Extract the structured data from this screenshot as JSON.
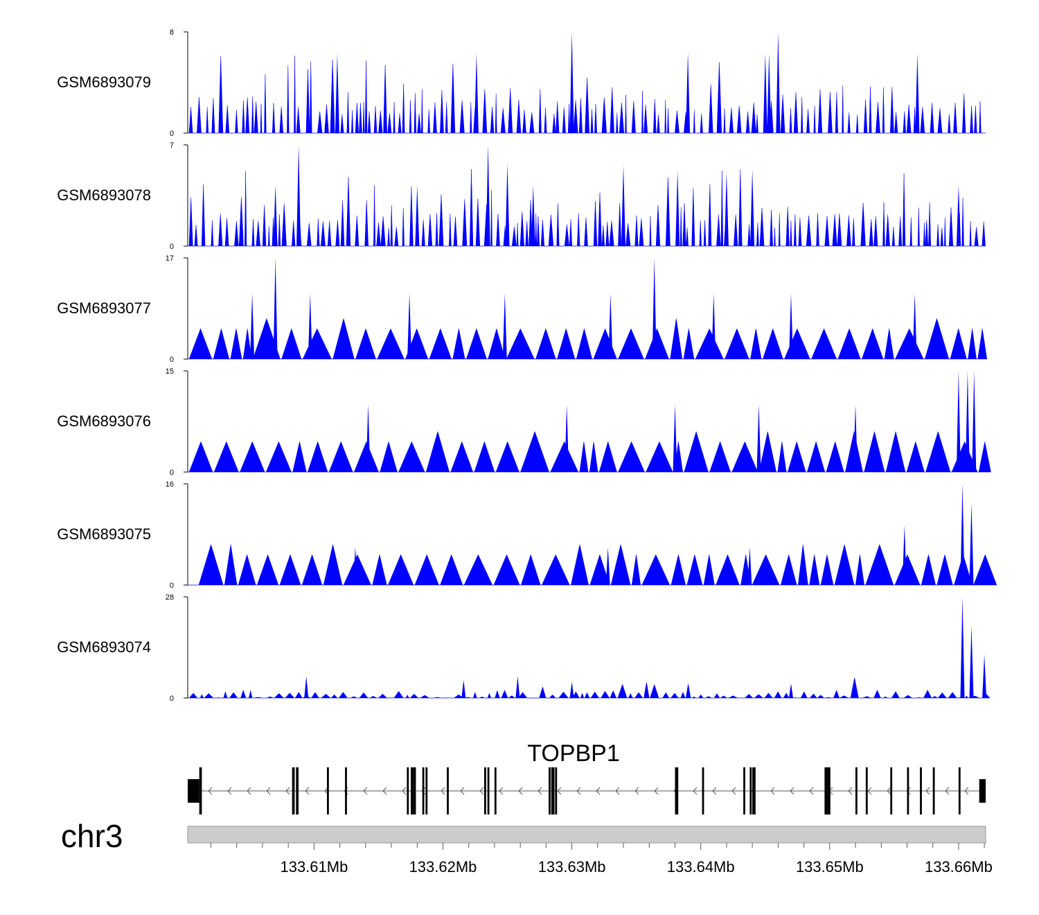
{
  "chart_data": {
    "type": "area",
    "xlim": [
      133600200,
      133662100
    ],
    "tracks": [
      {
        "name": "GSM6893079",
        "ymax": 8,
        "ymin": 0,
        "color": "#0000ff",
        "peaks": [
          [
            133611800,
            6.3
          ],
          [
            133622600,
            6.3
          ],
          [
            133630000,
            8
          ],
          [
            133639000,
            6.4
          ],
          [
            133645000,
            6.3
          ],
          [
            133645300,
            6.3
          ],
          [
            133646000,
            8
          ],
          [
            133656800,
            6.3
          ]
        ]
      },
      {
        "name": "GSM6893078",
        "ymax": 7,
        "ymin": 0,
        "color": "#0000ff",
        "peaks": [
          [
            133607000,
            4.2
          ],
          [
            133608800,
            7
          ],
          [
            133618000,
            4.2
          ],
          [
            133623500,
            7
          ],
          [
            133625000,
            5.7
          ],
          [
            133627000,
            4.2
          ],
          [
            133634000,
            5.6
          ],
          [
            133638200,
            5.2
          ],
          [
            133642000,
            5.1
          ],
          [
            133644000,
            5.3
          ],
          [
            133660000,
            4.2
          ]
        ]
      },
      {
        "name": "GSM6893077",
        "ymax": 17,
        "ymin": 0,
        "color": "#0000ff",
        "peaks": [
          [
            133605200,
            11
          ],
          [
            133607000,
            17
          ],
          [
            133609700,
            11
          ],
          [
            133617400,
            11
          ],
          [
            133624800,
            11
          ],
          [
            133633000,
            11
          ],
          [
            133636400,
            17
          ],
          [
            133641000,
            11
          ],
          [
            133647000,
            11
          ],
          [
            133656600,
            11
          ]
        ]
      },
      {
        "name": "GSM6893076",
        "ymax": 15,
        "ymin": 0,
        "color": "#0000ff",
        "peaks": [
          [
            133614200,
            10
          ],
          [
            133629600,
            10
          ],
          [
            133638000,
            10
          ],
          [
            133644500,
            10
          ],
          [
            133652000,
            10
          ],
          [
            133660000,
            15
          ],
          [
            133660700,
            15
          ],
          [
            133661200,
            15
          ]
        ]
      },
      {
        "name": "GSM6893075",
        "ymax": 16,
        "ymin": 0,
        "color": "#0000ff",
        "peaks": [
          [
            133613200,
            6
          ],
          [
            133632800,
            6
          ],
          [
            133643800,
            6
          ],
          [
            133655800,
            9.5
          ],
          [
            133660300,
            16
          ],
          [
            133661000,
            13
          ]
        ]
      },
      {
        "name": "GSM6893074",
        "ymax": 28,
        "ymin": 0,
        "color": "#0000ff",
        "peaks": [
          [
            133609400,
            6
          ],
          [
            133621600,
            5
          ],
          [
            133625800,
            6
          ],
          [
            133630000,
            4.5
          ],
          [
            133647000,
            4
          ],
          [
            133660300,
            28
          ],
          [
            133661000,
            20
          ],
          [
            133662000,
            12
          ]
        ]
      }
    ],
    "gene": {
      "name": "TOPBP1",
      "strand": "-",
      "start": 133600200,
      "end": 133662100,
      "exons": [
        [
          133600200,
          133601100,
          "utr"
        ],
        [
          133601100,
          133601300,
          "cds"
        ],
        [
          133608300,
          133608500,
          "cds"
        ],
        [
          133608600,
          133608800,
          "cds"
        ],
        [
          133611000,
          133611150,
          "cds"
        ],
        [
          133612400,
          133612550,
          "cds"
        ],
        [
          133617200,
          133617350,
          "cds"
        ],
        [
          133617500,
          133617700,
          "cds"
        ],
        [
          133617700,
          133617900,
          "cds"
        ],
        [
          133618400,
          133618550,
          "cds"
        ],
        [
          133618650,
          133618800,
          "cds"
        ],
        [
          133620300,
          133620450,
          "cds"
        ],
        [
          133623200,
          133623350,
          "cds"
        ],
        [
          133623450,
          133623600,
          "cds"
        ],
        [
          133624000,
          133624150,
          "cds"
        ],
        [
          133628200,
          133628350,
          "cds"
        ],
        [
          133628400,
          133628650,
          "cds"
        ],
        [
          133628700,
          133628850,
          "cds"
        ],
        [
          133638000,
          133638250,
          "cds"
        ],
        [
          133640100,
          133640250,
          "cds"
        ],
        [
          133643300,
          133643450,
          "cds"
        ],
        [
          133643800,
          133643950,
          "cds"
        ],
        [
          133644000,
          133644250,
          "cds"
        ],
        [
          133649600,
          133649800,
          "cds"
        ],
        [
          133649800,
          133650050,
          "cds"
        ],
        [
          133652000,
          133652150,
          "cds"
        ],
        [
          133652800,
          133652950,
          "cds"
        ],
        [
          133654700,
          133654850,
          "cds"
        ],
        [
          133656000,
          133656150,
          "cds"
        ],
        [
          133657000,
          133657150,
          "cds"
        ],
        [
          133658000,
          133658150,
          "cds"
        ],
        [
          133660000,
          133660150,
          "cds"
        ],
        [
          133661600,
          133662100,
          "utr"
        ]
      ]
    },
    "genome_axis": {
      "chromosome": "chr3",
      "ticks": [
        {
          "pos": 133610000,
          "label": "133.61Mb"
        },
        {
          "pos": 133620000,
          "label": "133.62Mb"
        },
        {
          "pos": 133630000,
          "label": "133.63Mb"
        },
        {
          "pos": 133640000,
          "label": "133.64Mb"
        },
        {
          "pos": 133650000,
          "label": "133.65Mb"
        },
        {
          "pos": 133660000,
          "label": "133.66Mb"
        }
      ],
      "minor_tick_step": 2000
    }
  }
}
